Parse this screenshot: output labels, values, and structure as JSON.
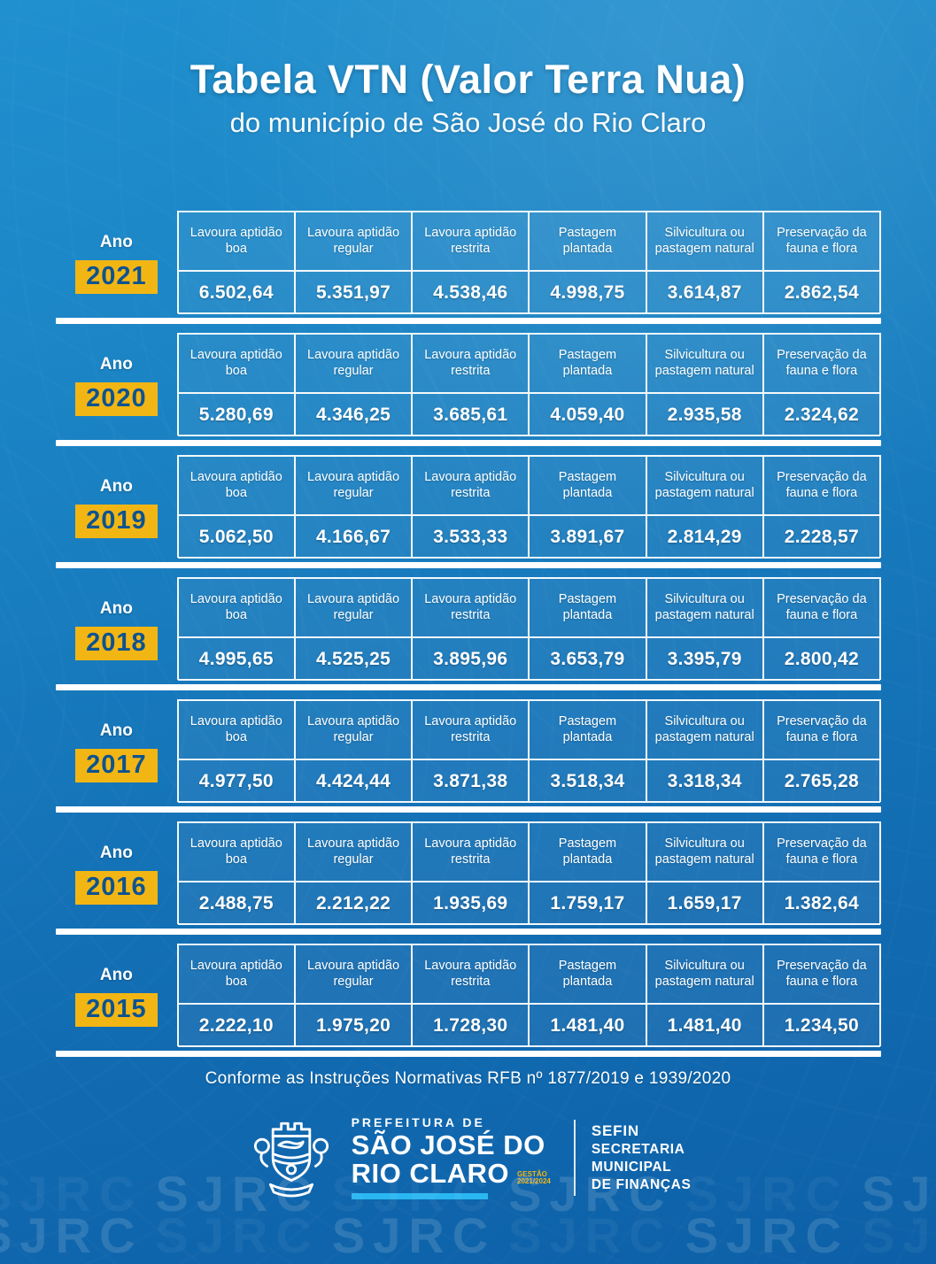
{
  "title": "Tabela VTN (Valor Terra Nua)",
  "subtitle": "do município de São José do Rio Claro",
  "ano_label": "Ano",
  "columns": [
    "Lavoura aptidão boa",
    "Lavoura aptidão regular",
    "Lavoura aptidão restrita",
    "Pastagem plantada",
    "Silvicultura ou pastagem natural",
    "Preservação da fauna e flora"
  ],
  "tables": [
    {
      "year": "2021",
      "values": [
        "6.502,64",
        "5.351,97",
        "4.538,46",
        "4.998,75",
        "3.614,87",
        "2.862,54"
      ]
    },
    {
      "year": "2020",
      "values": [
        "5.280,69",
        "4.346,25",
        "3.685,61",
        "4.059,40",
        "2.935,58",
        "2.324,62"
      ]
    },
    {
      "year": "2019",
      "values": [
        "5.062,50",
        "4.166,67",
        "3.533,33",
        "3.891,67",
        "2.814,29",
        "2.228,57"
      ]
    },
    {
      "year": "2018",
      "values": [
        "4.995,65",
        "4.525,25",
        "3.895,96",
        "3.653,79",
        "3.395,79",
        "2.800,42"
      ]
    },
    {
      "year": "2017",
      "values": [
        "4.977,50",
        "4.424,44",
        "3.871,38",
        "3.518,34",
        "3.318,34",
        "2.765,28"
      ]
    },
    {
      "year": "2016",
      "values": [
        "2.488,75",
        "2.212,22",
        "1.935,69",
        "1.759,17",
        "1.659,17",
        "1.382,64"
      ]
    },
    {
      "year": "2015",
      "values": [
        "2.222,10",
        "1.975,20",
        "1.728,30",
        "1.481,40",
        "1.481,40",
        "1.234,50"
      ]
    }
  ],
  "footnote": "Conforme as Instruções Normativas RFB nº 1877/2019 e 1939/2020",
  "logo": {
    "prefeitura_line": "PREFEITURA DE",
    "city_line1": "SÃO JOSÉ DO",
    "city_line2": "RIO CLARO",
    "gestao_line1": "GESTÃO",
    "gestao_line2": "2021/2024",
    "dept_acronym": "SEFIN",
    "dept_lines": [
      "SECRETARIA",
      "MUNICIPAL",
      "DE FINANÇAS"
    ]
  },
  "watermark_text": "SJRC",
  "colors": {
    "badge_yellow": "#f2b614",
    "badge_text_blue": "#0d5390",
    "accent_cyan": "#29b7f2",
    "background_top": "#2090cf",
    "background_bottom": "#0d60a7"
  }
}
